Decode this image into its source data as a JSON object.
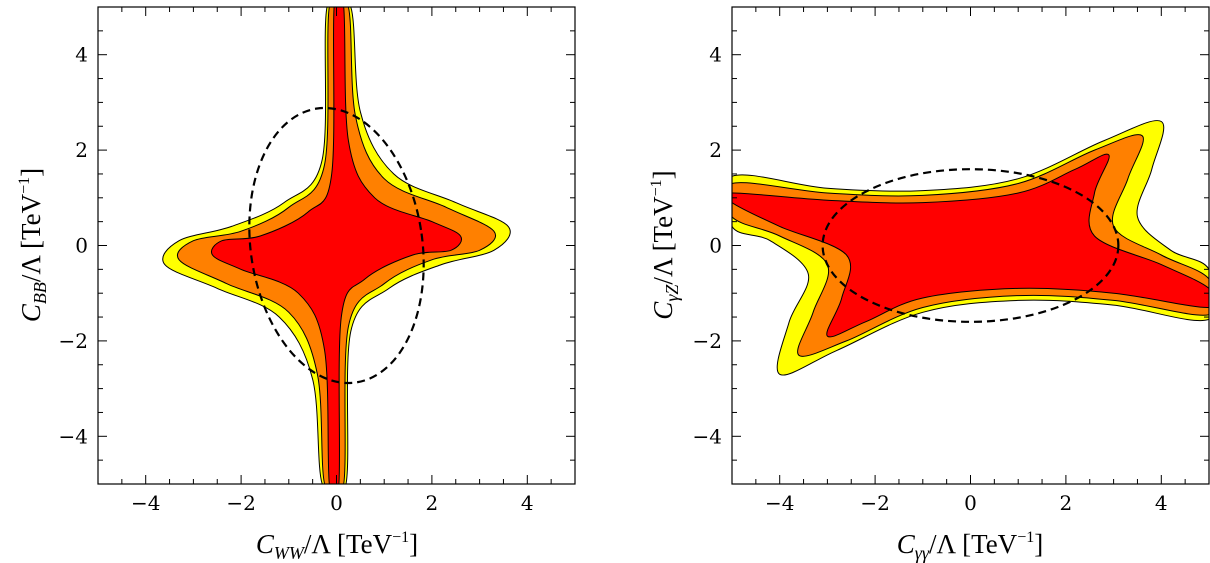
{
  "chart_data": [
    {
      "type": "contour",
      "id": "left",
      "xlabel": {
        "sym": "C",
        "sub": "WW",
        "rest": "/Λ [TeV",
        "sup": "−1",
        "end": "]"
      },
      "ylabel": {
        "sym": "C",
        "sub": "BB",
        "rest": "/Λ [TeV",
        "sup": "−1",
        "end": "]"
      },
      "xlim": [
        -5,
        5
      ],
      "ylim": [
        -5,
        5
      ],
      "xticks": [
        -4,
        -2,
        0,
        2,
        4
      ],
      "yticks": [
        -4,
        -2,
        0,
        2,
        4
      ],
      "xtick_labels": [
        "−4",
        "−2",
        "0",
        "2",
        "4"
      ],
      "ytick_labels": [
        "−4",
        "−2",
        "0",
        "2",
        "4"
      ],
      "regions": [
        {
          "color": "#ffff00",
          "outline": [
            [
              0.3,
              5
            ],
            [
              0.5,
              2.8
            ],
            [
              1.2,
              1.5
            ],
            [
              2.5,
              0.9
            ],
            [
              3.6,
              0.4
            ],
            [
              3.3,
              -0.1
            ],
            [
              2.2,
              -0.4
            ],
            [
              1.1,
              -0.9
            ],
            [
              0.3,
              -1.8
            ],
            [
              0.2,
              -5
            ],
            [
              -0.3,
              -5
            ],
            [
              -0.5,
              -2.8
            ],
            [
              -1.2,
              -1.5
            ],
            [
              -2.5,
              -0.9
            ],
            [
              -3.6,
              -0.4
            ],
            [
              -3.3,
              0.1
            ],
            [
              -2.2,
              0.4
            ],
            [
              -1.1,
              0.9
            ],
            [
              -0.3,
              1.8
            ],
            [
              -0.2,
              5
            ]
          ]
        },
        {
          "color": "#ff8000",
          "outline": [
            [
              0.25,
              5
            ],
            [
              0.4,
              2.7
            ],
            [
              1.0,
              1.4
            ],
            [
              2.3,
              0.8
            ],
            [
              3.3,
              0.3
            ],
            [
              3.0,
              -0.1
            ],
            [
              2.0,
              -0.3
            ],
            [
              1.0,
              -0.8
            ],
            [
              0.25,
              -1.7
            ],
            [
              0.15,
              -5
            ],
            [
              -0.25,
              -5
            ],
            [
              -0.4,
              -2.7
            ],
            [
              -1.0,
              -1.4
            ],
            [
              -2.3,
              -0.8
            ],
            [
              -3.3,
              -0.3
            ],
            [
              -3.0,
              0.1
            ],
            [
              -2.0,
              0.3
            ],
            [
              -1.0,
              0.8
            ],
            [
              -0.25,
              1.7
            ],
            [
              -0.15,
              5
            ]
          ]
        },
        {
          "color": "#ff0000",
          "outline": [
            [
              0.15,
              5
            ],
            [
              0.25,
              2.2
            ],
            [
              0.8,
              1.0
            ],
            [
              2.0,
              0.5
            ],
            [
              2.6,
              0.2
            ],
            [
              2.4,
              -0.1
            ],
            [
              1.6,
              -0.2
            ],
            [
              0.6,
              -0.7
            ],
            [
              0.1,
              -1.5
            ],
            [
              0.05,
              -5
            ],
            [
              -0.15,
              -5
            ],
            [
              -0.25,
              -2.2
            ],
            [
              -0.8,
              -1.0
            ],
            [
              -2.0,
              -0.5
            ],
            [
              -2.6,
              -0.2
            ],
            [
              -2.4,
              0.1
            ],
            [
              -1.6,
              0.2
            ],
            [
              -0.6,
              0.7
            ],
            [
              -0.1,
              1.5
            ],
            [
              -0.05,
              5
            ]
          ]
        }
      ],
      "dashed_ellipse": {
        "cx": 0,
        "cy": 0,
        "rx": 1.8,
        "ry": 2.9,
        "rotate_deg": -8
      }
    },
    {
      "type": "contour",
      "id": "right",
      "xlabel": {
        "sym": "C",
        "sub": "γγ",
        "rest": "/Λ [TeV",
        "sup": "−1",
        "end": "]"
      },
      "ylabel": {
        "sym": "C",
        "sub": "γZ",
        "rest": "/Λ [TeV",
        "sup": "−1",
        "end": "]"
      },
      "xlim": [
        -5,
        5
      ],
      "ylim": [
        -5,
        5
      ],
      "xticks": [
        -4,
        -2,
        0,
        2,
        4
      ],
      "yticks": [
        -4,
        -2,
        0,
        2,
        4
      ],
      "xtick_labels": [
        "−4",
        "−2",
        "0",
        "2",
        "4"
      ],
      "ytick_labels": [
        "−4",
        "−2",
        "0",
        "2",
        "4"
      ],
      "regions": [
        {
          "color": "#ffff00",
          "outline": [
            [
              -5,
              1.45
            ],
            [
              -3,
              1.2
            ],
            [
              -1,
              1.15
            ],
            [
              1,
              1.4
            ],
            [
              2.8,
              2.2
            ],
            [
              4.0,
              2.6
            ],
            [
              3.8,
              1.6
            ],
            [
              3.5,
              0.6
            ],
            [
              4.2,
              -0.1
            ],
            [
              5,
              -0.5
            ],
            [
              5,
              -1.55
            ],
            [
              3,
              -1.25
            ],
            [
              1,
              -1.15
            ],
            [
              -1,
              -1.4
            ],
            [
              -2.8,
              -2.2
            ],
            [
              -4.0,
              -2.7
            ],
            [
              -3.8,
              -1.6
            ],
            [
              -3.4,
              -0.6
            ],
            [
              -4.2,
              0.1
            ],
            [
              -5,
              0.4
            ]
          ]
        },
        {
          "color": "#ff8000",
          "outline": [
            [
              -5,
              1.3
            ],
            [
              -3,
              1.1
            ],
            [
              -1,
              1.05
            ],
            [
              1,
              1.3
            ],
            [
              2.6,
              2.0
            ],
            [
              3.6,
              2.3
            ],
            [
              3.3,
              1.4
            ],
            [
              3.0,
              0.4
            ],
            [
              4.0,
              -0.2
            ],
            [
              5,
              -0.7
            ],
            [
              5,
              -1.45
            ],
            [
              3,
              -1.15
            ],
            [
              1,
              -1.05
            ],
            [
              -1,
              -1.3
            ],
            [
              -2.6,
              -2.0
            ],
            [
              -3.6,
              -2.3
            ],
            [
              -3.3,
              -1.4
            ],
            [
              -3.0,
              -0.4
            ],
            [
              -4.0,
              0.2
            ],
            [
              -5,
              0.6
            ]
          ]
        },
        {
          "color": "#ff0000",
          "outline": [
            [
              -5,
              1.1
            ],
            [
              -3,
              0.95
            ],
            [
              -1,
              0.9
            ],
            [
              1,
              1.1
            ],
            [
              2.2,
              1.6
            ],
            [
              2.9,
              1.9
            ],
            [
              2.6,
              1.1
            ],
            [
              2.6,
              0.2
            ],
            [
              4.0,
              -0.4
            ],
            [
              5,
              -0.9
            ],
            [
              5,
              -1.3
            ],
            [
              3,
              -1.0
            ],
            [
              1,
              -0.9
            ],
            [
              -1,
              -1.1
            ],
            [
              -2.2,
              -1.6
            ],
            [
              -3.0,
              -1.9
            ],
            [
              -2.7,
              -1.1
            ],
            [
              -2.6,
              -0.2
            ],
            [
              -4.0,
              0.4
            ],
            [
              -5,
              0.9
            ]
          ]
        }
      ],
      "dashed_ellipse": {
        "cx": 0,
        "cy": 0,
        "rx": 3.1,
        "ry": 1.6,
        "rotate_deg": 0
      }
    }
  ]
}
